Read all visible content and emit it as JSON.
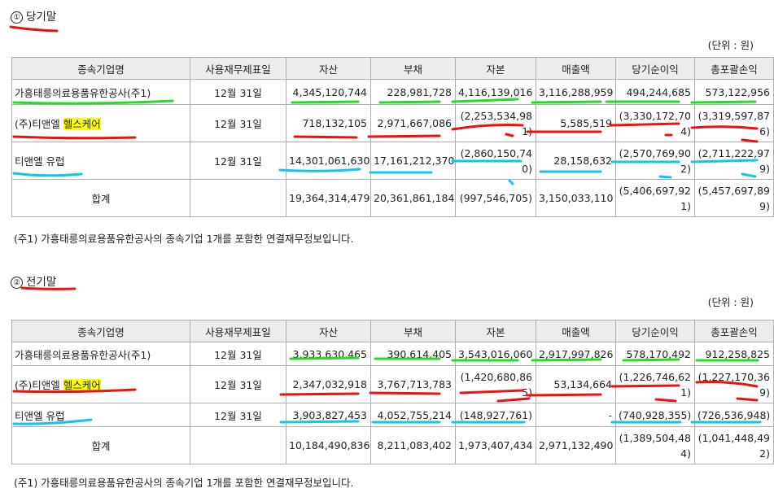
{
  "header_cols": [
    "종속기업명",
    "사용재무제표일",
    "자산",
    "부채",
    "자본",
    "매출액",
    "당기순이익",
    "총포괄손익"
  ],
  "unit": "(단위 : 원)",
  "note": "(주1) 가흥태릉의료용품유한공사의 종속기업 1개를 포함한 연결재무정보입니다.",
  "current": {
    "num": "①",
    "title": "당기말",
    "rows": [
      {
        "name": "가흥태릉의료용품유한공사(주1)",
        "name_prefix": "",
        "name_highlight": "",
        "date": "12월 31일",
        "assets": "4,345,120,744",
        "liabilities": "228,981,728",
        "equity": "4,116,139,016",
        "revenue": "3,116,288,959",
        "net_income": "494,244,685",
        "comprehensive": "573,122,956"
      },
      {
        "name": "",
        "name_prefix": "(주)티앤엘 ",
        "name_highlight": "헬스케어",
        "date": "12월 31일",
        "assets": "718,132,105",
        "liabilities": "2,971,667,086",
        "equity": "(2,253,534,981)",
        "revenue": "5,585,519",
        "net_income": "(3,330,172,704)",
        "comprehensive": "(3,319,597,876)"
      },
      {
        "name": "티앤엘 유럽",
        "name_prefix": "",
        "name_highlight": "",
        "date": "12월 31일",
        "assets": "14,301,061,630",
        "liabilities": "17,161,212,370",
        "equity": "(2,860,150,740)",
        "revenue": "28,158,632",
        "net_income": "(2,570,769,902)",
        "comprehensive": "(2,711,222,979)"
      }
    ],
    "total": {
      "label": "합계",
      "assets": "19,364,314,479",
      "liabilities": "20,361,861,184",
      "equity": "(997,546,705)",
      "revenue": "3,150,033,110",
      "net_income": "(5,406,697,921)",
      "comprehensive": "(5,457,697,899)"
    }
  },
  "prior": {
    "num": "②",
    "title": "전기말",
    "rows": [
      {
        "name": "가흥태릉의료용품유한공사(주1)",
        "name_prefix": "",
        "name_highlight": "",
        "date": "12월 31일",
        "assets": "3,933,630,465",
        "liabilities": "390,614,405",
        "equity": "3,543,016,060",
        "revenue": "2,917,997,826",
        "net_income": "578,170,492",
        "comprehensive": "912,258,825"
      },
      {
        "name": "",
        "name_prefix": "(주)티앤엘 ",
        "name_highlight": "헬스케어",
        "date": "12월 31일",
        "assets": "2,347,032,918",
        "liabilities": "3,767,713,783",
        "equity": "(1,420,680,865)",
        "revenue": "53,134,664",
        "net_income": "(1,226,746,621)",
        "comprehensive": "(1,227,170,369)"
      },
      {
        "name": "티앤엘 유럽",
        "name_prefix": "",
        "name_highlight": "",
        "date": "12월 31일",
        "assets": "3,903,827,453",
        "liabilities": "4,052,755,214",
        "equity": "(148,927,761)",
        "revenue": "-",
        "net_income": "(740,928,355)",
        "comprehensive": "(726,536,948)"
      }
    ],
    "total": {
      "label": "합계",
      "assets": "10,184,490,836",
      "liabilities": "8,211,083,402",
      "equity": "1,973,407,434",
      "revenue": "2,971,132,490",
      "net_income": "(1,389,504,484)",
      "comprehensive": "(1,041,448,492)"
    }
  },
  "colors": {
    "green": "#22dd22",
    "red": "#ee1111",
    "cyan": "#11c6ee",
    "highlight": "#ffff00"
  }
}
